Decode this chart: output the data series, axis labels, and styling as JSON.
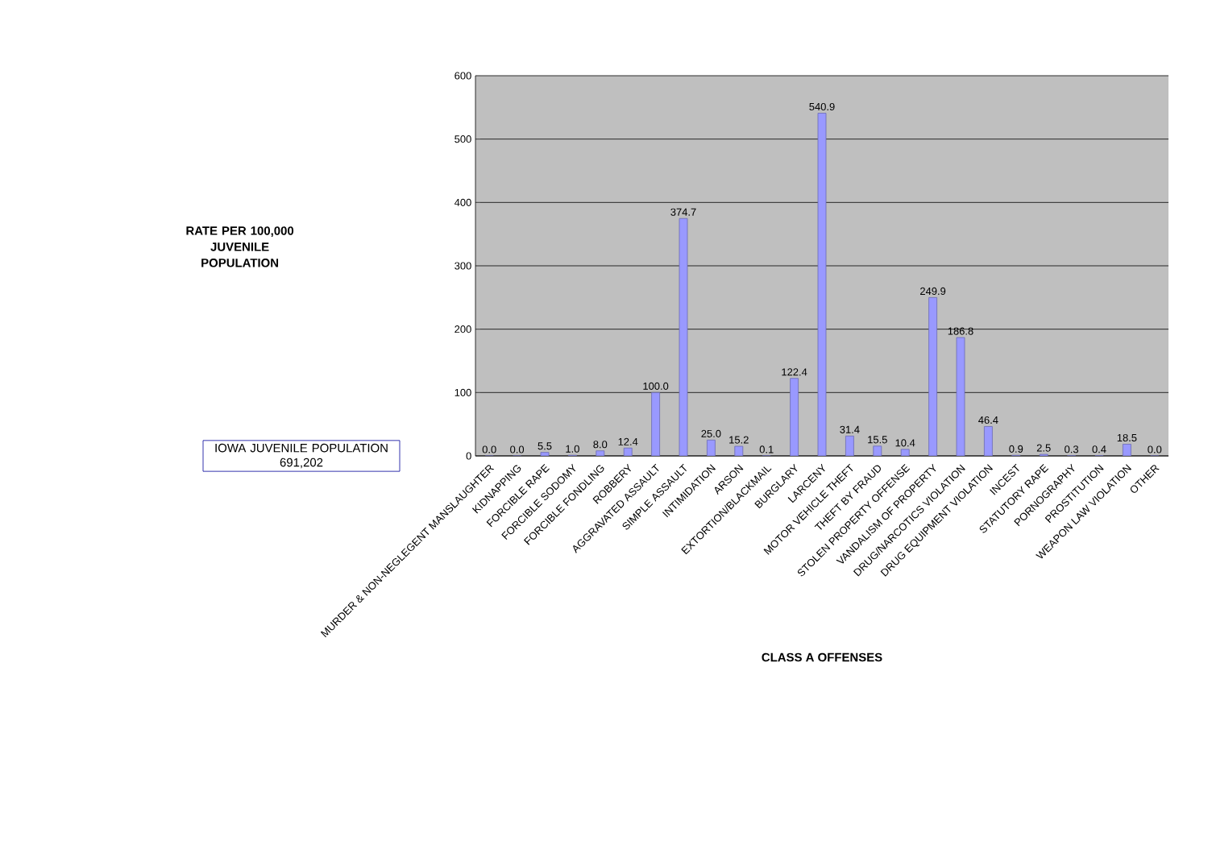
{
  "chart_data": {
    "type": "bar",
    "xlabel": "CLASS A OFFENSES",
    "ylabel": "RATE PER 100,000 JUVENILE POPULATION",
    "annotations": [
      "IOWA JUVENILE POPULATION\n691,202"
    ],
    "categories": [
      "MURDER & NON-NEGLEGENT MANSLAUGHTER",
      "KIDNAPPING",
      "FORCIBLE RAPE",
      "FORCIBLE SODOMY",
      "FORCIBLE FONDLING",
      "ROBBERY",
      "AGGRAVATED ASSAULT",
      "SIMPLE ASSAULT",
      "INTIMIDATION",
      "ARSON",
      "EXTORTION/BLACKMAIL",
      "BURGLARY",
      "LARCENY",
      "MOTOR VEHICLE THEFT",
      "THEFT BY FRAUD",
      "STOLEN PROPERTY OFFENSE",
      "VANDALISM OF PROPERTY",
      "DRUG/NARCOTICS VIOLATION",
      "DRUG EQUIPMENT VIOLATION",
      "INCEST",
      "STATUTORY RAPE",
      "PORNOGRAPHY",
      "PROSTITUTION",
      "WEAPON LAW VIOLATION",
      "OTHER"
    ],
    "values": [
      0.0,
      0.0,
      5.5,
      1.0,
      8.0,
      12.4,
      100.0,
      374.7,
      25.0,
      15.2,
      0.1,
      122.4,
      540.9,
      31.4,
      15.5,
      10.4,
      249.9,
      186.8,
      46.4,
      0.9,
      2.5,
      0.3,
      0.4,
      18.5,
      0.0
    ],
    "color": "#9999ff",
    "value_labels": [
      "0.0",
      "0.0",
      "5.5",
      "1.0",
      "8.0",
      "12.4",
      "100.0",
      "374.7",
      "25.0",
      "15.2",
      "0.1",
      "122.4",
      "540.9",
      "31.4",
      "15.5",
      "10.4",
      "249.9",
      "186.8",
      "46.4",
      "0.9",
      "2.5",
      "0.3",
      "0.4",
      "18.5",
      "0.0"
    ],
    "ylim": [
      0,
      600
    ],
    "yticks": [
      0,
      100,
      200,
      300,
      400,
      500,
      600
    ],
    "grid": "y"
  }
}
